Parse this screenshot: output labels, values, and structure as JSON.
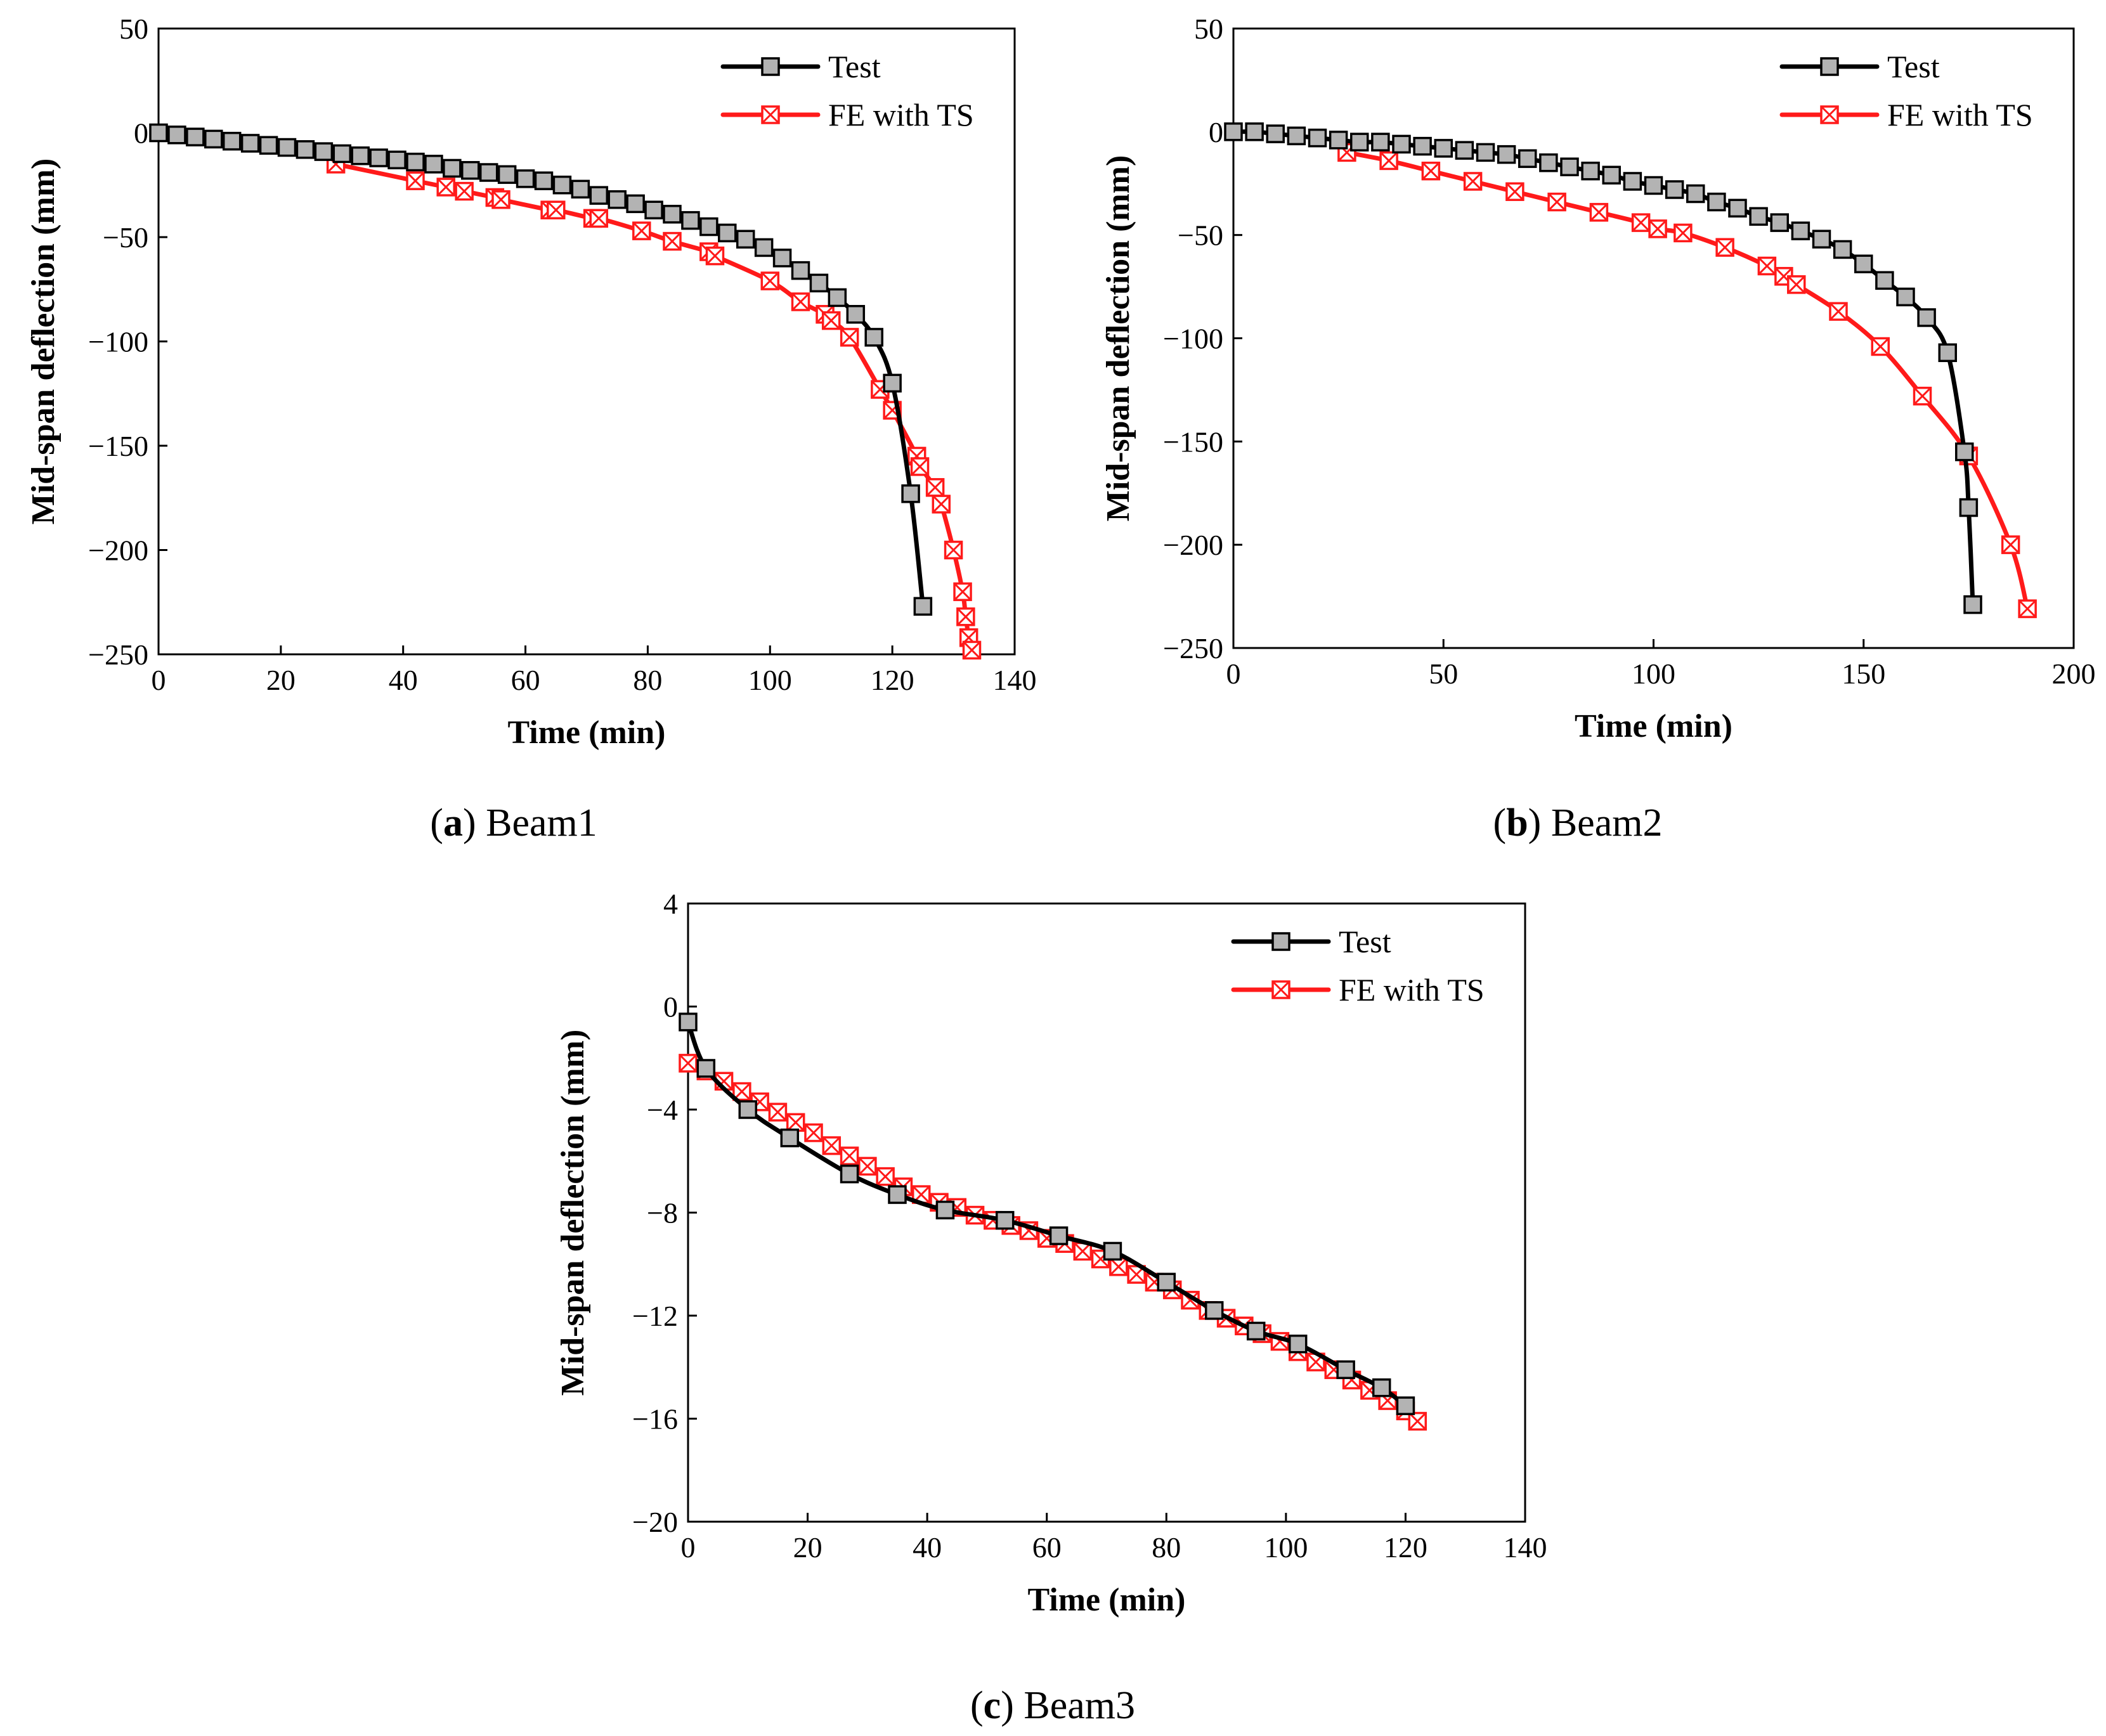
{
  "colors": {
    "test": "#000000",
    "test_marker_fill": "#b3b3b3",
    "fe": "#ff1a1a",
    "axis": "#000000"
  },
  "chart_data": [
    {
      "type": "line",
      "panel": "a",
      "caption": {
        "letter": "a",
        "text": "Beam1"
      },
      "xlabel": "Time (min)",
      "ylabel": "Mid-span deflection (mm)",
      "xlim": [
        0,
        140
      ],
      "ylim": [
        -250,
        50
      ],
      "xticks": [
        0,
        20,
        40,
        60,
        80,
        100,
        120,
        140
      ],
      "yticks": [
        50,
        0,
        -50,
        -100,
        -150,
        -200,
        -250
      ],
      "legend_position": "top-right",
      "series": [
        {
          "name": "Test",
          "marker": "square",
          "x": [
            0,
            3,
            6,
            9,
            12,
            15,
            18,
            21,
            24,
            27,
            30,
            33,
            36,
            39,
            42,
            45,
            48,
            51,
            54,
            57,
            60,
            63,
            66,
            69,
            72,
            75,
            78,
            81,
            84,
            87,
            90,
            93,
            96,
            99,
            102,
            105,
            108,
            111,
            114,
            117,
            120,
            123,
            125
          ],
          "y": [
            0,
            -1,
            -2,
            -3,
            -4,
            -5,
            -6,
            -7,
            -8,
            -9,
            -10,
            -11,
            -12,
            -13,
            -14,
            -15,
            -17,
            -18,
            -19,
            -20,
            -22,
            -23,
            -25,
            -27,
            -30,
            -32,
            -34,
            -37,
            -39,
            -42,
            -45,
            -48,
            -51,
            -55,
            -60,
            -66,
            -72,
            -79,
            -87,
            -98,
            -120,
            -173,
            -227
          ]
        },
        {
          "name": "FE with TS",
          "marker": "box-x",
          "x": [
            29,
            42,
            47,
            50,
            55,
            56,
            64,
            65,
            71,
            72,
            79,
            84,
            90,
            91,
            100,
            105,
            109,
            110,
            113,
            118,
            120,
            124,
            124.5,
            127,
            128,
            130,
            131.5,
            132,
            132.5,
            133
          ],
          "y": [
            -15,
            -23,
            -26,
            -28,
            -31,
            -32,
            -37,
            -37,
            -41,
            -41,
            -47,
            -52,
            -57,
            -59,
            -71,
            -81,
            -87,
            -90,
            -98,
            -123,
            -133,
            -155,
            -160,
            -170,
            -178,
            -200,
            -220,
            -232,
            -242,
            -248
          ]
        }
      ]
    },
    {
      "type": "line",
      "panel": "b",
      "caption": {
        "letter": "b",
        "text": "Beam2"
      },
      "xlabel": "Time (min)",
      "ylabel": "Mid-span deflection (mm)",
      "xlim": [
        0,
        200
      ],
      "ylim": [
        -250,
        50
      ],
      "xticks": [
        0,
        50,
        100,
        150,
        200
      ],
      "yticks": [
        50,
        0,
        -50,
        -100,
        -150,
        -200,
        -250
      ],
      "legend_position": "top-right",
      "series": [
        {
          "name": "Test",
          "marker": "square",
          "x": [
            0,
            5,
            10,
            15,
            20,
            25,
            30,
            35,
            40,
            45,
            50,
            55,
            60,
            65,
            70,
            75,
            80,
            85,
            90,
            95,
            100,
            105,
            110,
            115,
            120,
            125,
            130,
            135,
            140,
            145,
            150,
            155,
            160,
            165,
            170,
            174,
            175,
            176
          ],
          "y": [
            0,
            0,
            -1,
            -2,
            -3,
            -4,
            -5,
            -5,
            -6,
            -7,
            -8,
            -9,
            -10,
            -11,
            -13,
            -15,
            -17,
            -19,
            -21,
            -24,
            -26,
            -28,
            -30,
            -34,
            -37,
            -41,
            -44,
            -48,
            -52,
            -57,
            -64,
            -72,
            -80,
            -90,
            -107,
            -155,
            -182,
            -229
          ]
        },
        {
          "name": "FE with TS",
          "marker": "box-x",
          "x": [
            27,
            37,
            47,
            57,
            67,
            77,
            87,
            97,
            101,
            107,
            117,
            127,
            131,
            134,
            144,
            154,
            164,
            175,
            185,
            189
          ],
          "y": [
            -10,
            -14,
            -19,
            -24,
            -29,
            -34,
            -39,
            -44,
            -47,
            -49,
            -56,
            -65,
            -70,
            -74,
            -87,
            -104,
            -128,
            -157,
            -200,
            -231
          ]
        }
      ]
    },
    {
      "type": "line",
      "panel": "c",
      "caption": {
        "letter": "c",
        "text": "Beam3"
      },
      "xlabel": "Time (min)",
      "ylabel": "Mid-span deflection (mm)",
      "xlim": [
        0,
        140
      ],
      "ylim": [
        -20,
        4
      ],
      "xticks": [
        0,
        20,
        40,
        60,
        80,
        100,
        120,
        140
      ],
      "yticks": [
        4,
        0,
        -4,
        -8,
        -12,
        -16,
        -20
      ],
      "legend_position": "top-right",
      "series": [
        {
          "name": "Test",
          "marker": "square",
          "x": [
            0,
            3,
            10,
            17,
            27,
            35,
            43,
            53,
            62,
            71,
            80,
            88,
            95,
            102,
            110,
            116,
            120
          ],
          "y": [
            -0.6,
            -2.4,
            -4.0,
            -5.1,
            -6.5,
            -7.3,
            -7.9,
            -8.3,
            -8.9,
            -9.5,
            -10.7,
            -11.8,
            -12.6,
            -13.1,
            -14.1,
            -14.8,
            -15.5
          ]
        },
        {
          "name": "FE with TS",
          "marker": "box-x",
          "x": [
            0,
            3,
            6,
            9,
            12,
            15,
            18,
            21,
            24,
            27,
            30,
            33,
            36,
            39,
            42,
            45,
            48,
            51,
            54,
            57,
            60,
            63,
            66,
            69,
            72,
            75,
            78,
            81,
            84,
            87,
            90,
            93,
            96,
            99,
            102,
            105,
            108,
            111,
            114,
            117,
            120,
            122
          ],
          "y": [
            -2.2,
            -2.5,
            -2.9,
            -3.3,
            -3.7,
            -4.1,
            -4.5,
            -4.9,
            -5.4,
            -5.8,
            -6.2,
            -6.6,
            -7.0,
            -7.3,
            -7.6,
            -7.8,
            -8.1,
            -8.3,
            -8.5,
            -8.7,
            -9.0,
            -9.2,
            -9.5,
            -9.8,
            -10.1,
            -10.4,
            -10.7,
            -11.0,
            -11.4,
            -11.8,
            -12.1,
            -12.4,
            -12.7,
            -13.0,
            -13.4,
            -13.8,
            -14.1,
            -14.5,
            -14.9,
            -15.3,
            -15.7,
            -16.1
          ]
        }
      ]
    }
  ]
}
